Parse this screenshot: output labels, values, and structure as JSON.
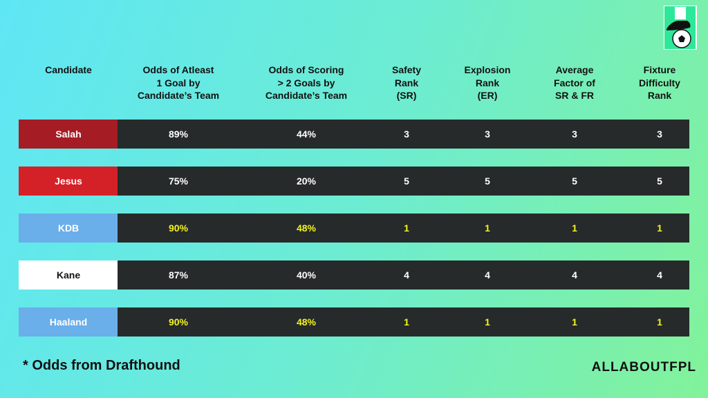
{
  "table": {
    "headers": [
      "Candidate",
      "Odds of Atleast\n1 Goal by\nCandidate’s Team",
      "Odds of Scoring\n> 2 Goals by\nCandidate’s Team",
      "Safety\nRank\n(SR)",
      "Explosion\nRank\n(ER)",
      "Average\nFactor of\nSR & FR",
      "Fixture\nDifficulty\nRank"
    ],
    "rows": [
      {
        "cells": [
          "Salah",
          "89%",
          "44%",
          "3",
          "3",
          "3",
          "3"
        ],
        "color": "#a51c24",
        "text_color": "#ffffff",
        "value_color": "#ffffff"
      },
      {
        "cells": [
          "Jesus",
          "75%",
          "20%",
          "5",
          "5",
          "5",
          "5"
        ],
        "color": "#d42127",
        "text_color": "#ffffff",
        "value_color": "#ffffff"
      },
      {
        "cells": [
          "KDB",
          "90%",
          "48%",
          "1",
          "1",
          "1",
          "1"
        ],
        "color": "#6aaeea",
        "text_color": "#ffffff",
        "value_color": "#f5f51c"
      },
      {
        "cells": [
          "Kane",
          "87%",
          "40%",
          "4",
          "4",
          "4",
          "4"
        ],
        "color": "#ffffff",
        "text_color": "#111111",
        "value_color": "#ffffff"
      },
      {
        "cells": [
          "Haaland",
          "90%",
          "48%",
          "1",
          "1",
          "1",
          "1"
        ],
        "color": "#6aaeea",
        "text_color": "#ffffff",
        "value_color": "#f5f51c"
      }
    ]
  },
  "footnote": "*  Odds from Drafthound",
  "brand": "ALLABOUTFPL"
}
